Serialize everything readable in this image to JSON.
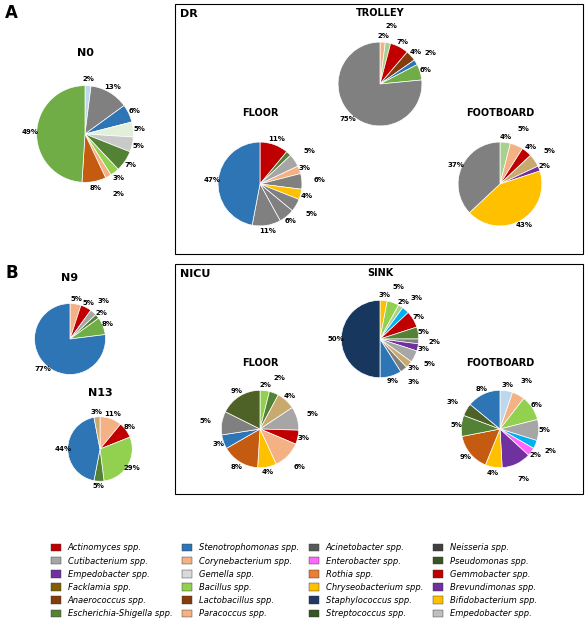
{
  "chart_data": [
    {
      "type": "pie",
      "title": "N0",
      "values": [
        2,
        13,
        6,
        5,
        5,
        7,
        3,
        2,
        8,
        49
      ],
      "value_labels": [
        "2%",
        "13%",
        "6%",
        "5%",
        "5%",
        "7%",
        "3%",
        "2%",
        "8%",
        "49%"
      ],
      "colors": [
        "#bdd7ee",
        "#808080",
        "#2e75b6",
        "#e2efda",
        "#c9c9c9",
        "#548235",
        "#92d050",
        "#f4b183",
        "#c55a11",
        "#70ad47"
      ],
      "data_labels": true
    },
    {
      "type": "pie",
      "title": "TROLLEY",
      "values": [
        2,
        2,
        7,
        4,
        2,
        6,
        75
      ],
      "value_labels": [
        "2%",
        "2%",
        "7%",
        "4%",
        "2%",
        "6%",
        "75%"
      ],
      "colors": [
        "#f4b183",
        "#a9d18e",
        "#c00000",
        "#843c0c",
        "#2e75b6",
        "#70ad47",
        "#808080"
      ],
      "data_labels": true
    },
    {
      "type": "pie",
      "title": "FLOOR",
      "values": [
        11,
        2,
        5,
        3,
        6,
        4,
        5,
        6,
        11,
        47
      ],
      "value_labels": [
        "11%",
        null,
        "5%",
        "3%",
        "6%",
        "4%",
        "5%",
        "6%",
        "11%",
        "47%"
      ],
      "colors": [
        "#c00000",
        "#548235",
        "#a6a6a6",
        "#f4b183",
        "#808080",
        "#ffc000",
        "#808080",
        "#808080",
        "#808080",
        "#2e75b6"
      ],
      "data_labels": true
    },
    {
      "type": "pie",
      "title": "FOOTBOARD",
      "values": [
        4,
        5,
        4,
        5,
        2,
        43,
        37
      ],
      "value_labels": [
        "4%",
        "5%",
        "4%",
        "5%",
        "2%",
        "43%",
        "37%"
      ],
      "colors": [
        "#a9d18e",
        "#f4b183",
        "#c00000",
        "#c8a96e",
        "#7030a0",
        "#ffc000",
        "#808080"
      ],
      "data_labels": true
    },
    {
      "type": "pie",
      "title": "N9",
      "values": [
        5,
        5,
        3,
        2,
        8,
        77
      ],
      "value_labels": [
        "5%",
        "5%",
        "3%",
        "2%",
        "8%",
        "77%"
      ],
      "colors": [
        "#f4b183",
        "#c00000",
        "#a6a6a6",
        "#548235",
        "#70ad47",
        "#2e75b6"
      ],
      "data_labels": true
    },
    {
      "type": "pie",
      "title": "N13",
      "values": [
        11,
        8,
        29,
        5,
        44,
        3
      ],
      "value_labels": [
        "11%",
        "8%",
        "29%",
        "5%",
        "44%",
        "3%"
      ],
      "colors": [
        "#f4b183",
        "#c00000",
        "#92d050",
        "#548235",
        "#2e75b6",
        "#c8a96e"
      ],
      "data_labels": true
    },
    {
      "type": "pie",
      "title": "SINK",
      "values": [
        3,
        5,
        2,
        3,
        7,
        5,
        2,
        3,
        5,
        3,
        3,
        9,
        50
      ],
      "value_labels": [
        "3%",
        "5%",
        "2%",
        "3%",
        "7%",
        "5%",
        "2%",
        "3%",
        "5%",
        "3%",
        "3%",
        "9%",
        "50%"
      ],
      "colors": [
        "#ffc000",
        "#92d050",
        "#a9d18e",
        "#00b0f0",
        "#c00000",
        "#548235",
        "#808080",
        "#7030a0",
        "#a6a6a6",
        "#c8a96e",
        "#808080",
        "#2e75b6",
        "#17375e"
      ],
      "data_labels": true
    },
    {
      "type": "pie",
      "title": "FLOOR",
      "values": [
        2,
        2,
        4,
        5,
        3,
        6,
        4,
        8,
        3,
        5,
        9
      ],
      "value_labels": [
        "2%",
        "2%",
        "4%",
        "5%",
        "3%",
        "6%",
        "4%",
        "8%",
        "3%",
        "5%",
        "9%"
      ],
      "colors": [
        "#92d050",
        "#548235",
        "#c8a96e",
        "#a6a6a6",
        "#c00000",
        "#f4b183",
        "#ffc000",
        "#c55a11",
        "#2e75b6",
        "#808080",
        "#4e6228"
      ],
      "data_labels": true
    },
    {
      "type": "pie",
      "title": "FOOTBOARD",
      "values": [
        3,
        3,
        6,
        5,
        2,
        2,
        7,
        4,
        9,
        5,
        3,
        8
      ],
      "value_labels": [
        "3%",
        "3%",
        "6%",
        "5%",
        "2%",
        "2%",
        "7%",
        "4%",
        "9%",
        "5%",
        "3%",
        "8%"
      ],
      "colors": [
        "#bdd7ee",
        "#f4b183",
        "#92d050",
        "#a6a6a6",
        "#00b0f0",
        "#ff66ff",
        "#7030a0",
        "#ffc000",
        "#c55a11",
        "#548235",
        "#4e6228",
        "#2e75b6"
      ],
      "data_labels": true
    }
  ],
  "annotations": [
    "A",
    "DR",
    "B",
    "NICU"
  ],
  "legend": "lower center",
  "series": [
    {
      "name": "Actinomyces spp.",
      "color": "#c00000"
    },
    {
      "name": "Cutibacterium spp.",
      "color": "#a6a6a6"
    },
    {
      "name": "Empedobacter spp.",
      "color": "#7030a0"
    },
    {
      "name": "Facklamia spp.",
      "color": "#7f6000"
    },
    {
      "name": "Anaerococcus spp.",
      "color": "#843c0c"
    },
    {
      "name": "Escherichia-Shigella spp.",
      "color": "#548235"
    },
    {
      "name": "Stenotrophomonas spp.",
      "color": "#2e75b6"
    },
    {
      "name": "Corynebacterium spp.",
      "color": "#f4b183"
    },
    {
      "name": "Gemella spp.",
      "color": "#d9d9d9"
    },
    {
      "name": "Bacillus spp.",
      "color": "#92d050"
    },
    {
      "name": "Lactobacillus spp.",
      "color": "#843c0c"
    },
    {
      "name": "Paracoccus spp.",
      "color": "#f4b183"
    },
    {
      "name": "Acinetobacter spp.",
      "color": "#595959"
    },
    {
      "name": "Enterobacter spp.",
      "color": "#ff66ff"
    },
    {
      "name": "Rothia spp.",
      "color": "#ed7d31"
    },
    {
      "name": "Chryseobacterium spp.",
      "color": "#ffc000"
    },
    {
      "name": "Staphylococcus spp.",
      "color": "#1f3864"
    },
    {
      "name": "Streptococcus spp.",
      "color": "#375623"
    },
    {
      "name": "Neisseria spp.",
      "color": "#404040"
    },
    {
      "name": "Pseudomonas spp.",
      "color": "#375623"
    },
    {
      "name": "Gemmobacter spp.",
      "color": "#c00000"
    },
    {
      "name": "Brevundimonas spp.",
      "color": "#7030a0"
    },
    {
      "name": "Bifidobacterium spp.",
      "color": "#ffc000"
    },
    {
      "name": "Empedobacter spp.",
      "color": "#bfbfbf"
    }
  ]
}
